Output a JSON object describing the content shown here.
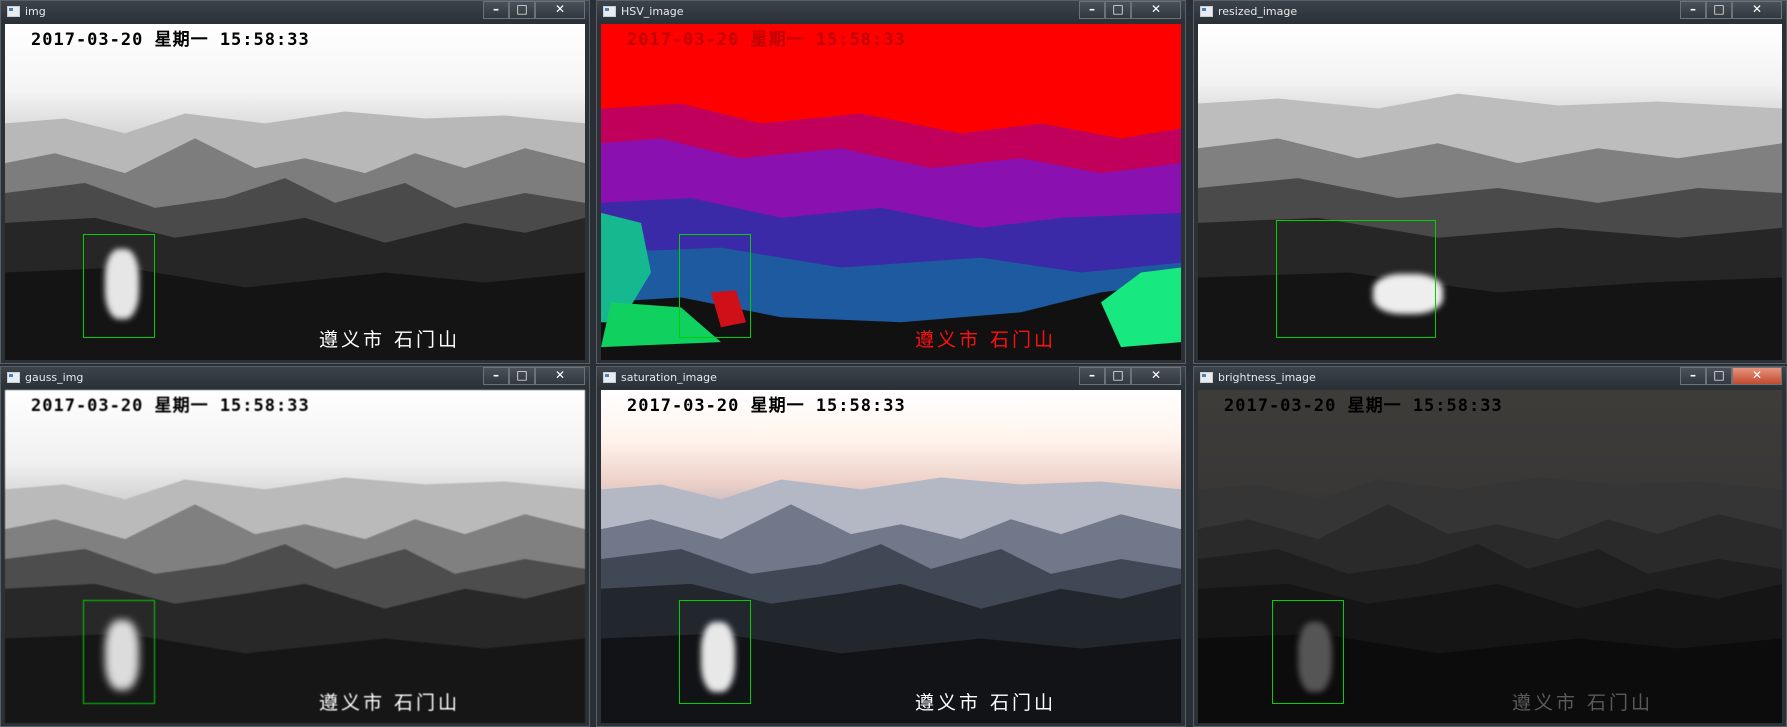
{
  "windows": [
    {
      "title": "img",
      "timestamp": "2017-03-20 星期一 15:58:33",
      "location": "遵义市 石门山"
    },
    {
      "title": "HSV_image",
      "timestamp": "2017-03-20 星期一 15:58:33",
      "location": "遵义市 石门山"
    },
    {
      "title": "resized_image",
      "timestamp": "",
      "location": ""
    },
    {
      "title": "gauss_img",
      "timestamp": "2017-03-20 星期一 15:58:33",
      "location": "遵义市 石门山"
    },
    {
      "title": "saturation_image",
      "timestamp": "2017-03-20 星期一 15:58:33",
      "location": "遵义市 石门山"
    },
    {
      "title": "brightness_image",
      "timestamp": "2017-03-20 星期一 15:58:33",
      "location": "遵义市 石门山"
    }
  ],
  "controls": {
    "minimize": "–",
    "maximize": "□",
    "close": "✕"
  },
  "colors": {
    "detection_box": "#00d000",
    "title_bar": "#2f353b",
    "close_active": "#c8502f"
  }
}
